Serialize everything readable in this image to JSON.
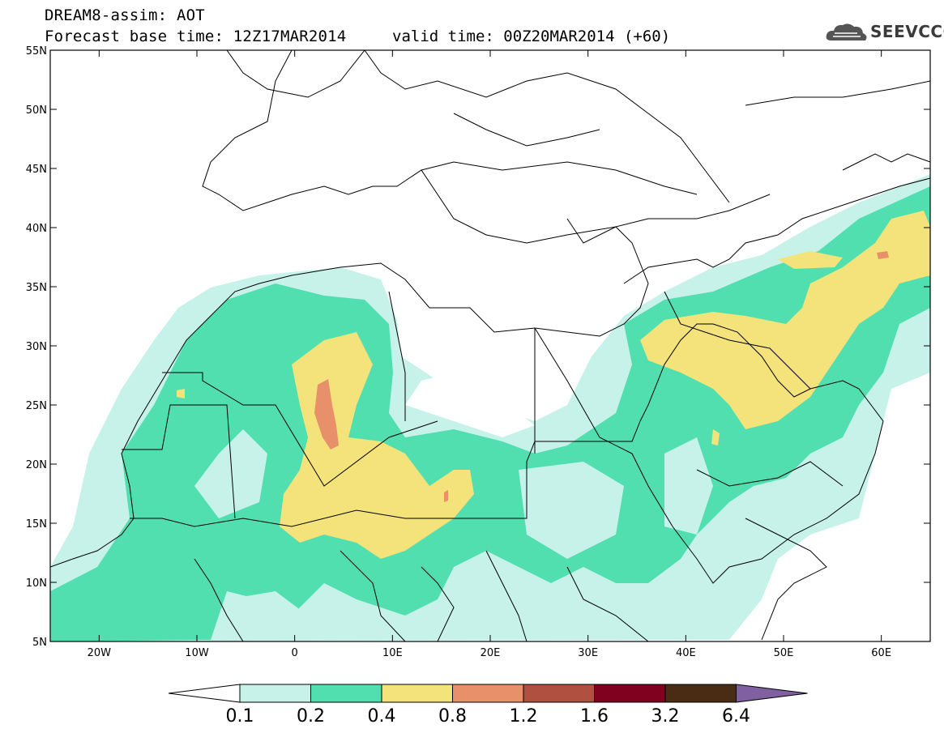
{
  "header": {
    "line1": "DREAM8-assim: AOT",
    "line2": "Forecast base time: 12Z17MAR2014",
    "valid_time": "valid time: 00Z20MAR2014 (+60)",
    "logo_text": "SEEVCCC"
  },
  "map": {
    "lon_range": [
      -25,
      65
    ],
    "lat_range": [
      5,
      55
    ],
    "lat_ticks": [
      "5N",
      "10N",
      "15N",
      "20N",
      "25N",
      "30N",
      "35N",
      "40N",
      "45N",
      "50N",
      "55N"
    ],
    "lon_ticks": [
      "20W",
      "10W",
      "0",
      "10E",
      "20E",
      "30E",
      "40E",
      "50E",
      "60E"
    ]
  },
  "colorbar": {
    "levels": [
      "0.1",
      "0.2",
      "0.4",
      "0.8",
      "1.2",
      "1.6",
      "3.2",
      "6.4"
    ],
    "colors": [
      "#ffffff",
      "#c7f2ea",
      "#52dfb0",
      "#f4e37a",
      "#e8906a",
      "#b05040",
      "#800020",
      "#4a2c14",
      "#8060a0"
    ]
  },
  "colors": {
    "aot_0_1": "#c7f2ea",
    "aot_0_2": "#52dfb0",
    "aot_0_4": "#f4e37a",
    "aot_0_8": "#e8906a"
  }
}
